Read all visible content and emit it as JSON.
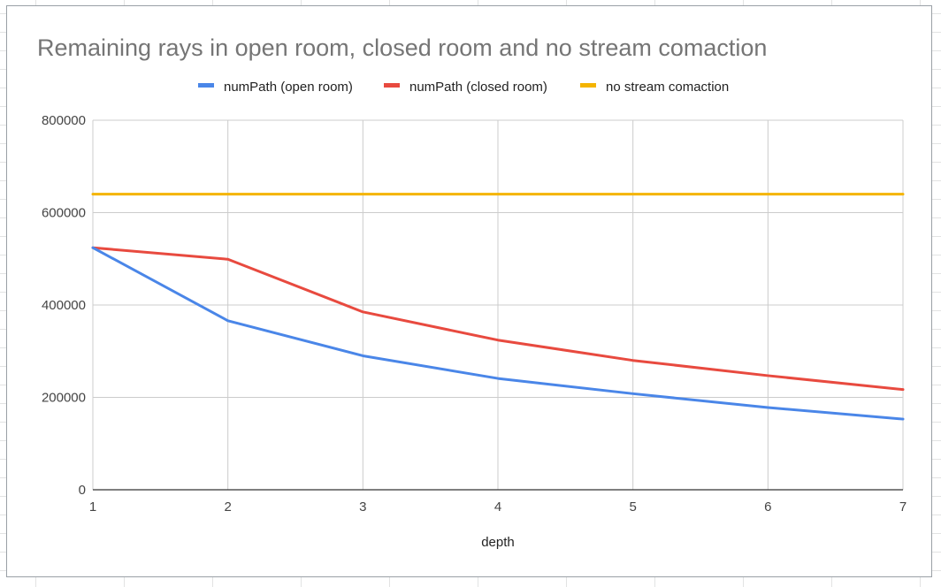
{
  "chart_data": {
    "type": "line",
    "title": "Remaining rays in open room, closed room and no stream comaction",
    "xlabel": "depth",
    "ylabel": "",
    "x": [
      1,
      2,
      3,
      4,
      5,
      6,
      7
    ],
    "x_ticks": [
      "1",
      "2",
      "3",
      "4",
      "5",
      "6",
      "7"
    ],
    "xlim": [
      1,
      7
    ],
    "ylim": [
      0,
      800000
    ],
    "y_ticks": [
      "0",
      "200000",
      "400000",
      "600000",
      "800000"
    ],
    "grid": true,
    "legend_position": "top",
    "series": [
      {
        "name": "numPath (open room)",
        "color": "#4a86e8",
        "values": [
          524000,
          366000,
          290000,
          241000,
          208000,
          178000,
          153000
        ]
      },
      {
        "name": "numPath (closed room)",
        "color": "#e84a3f",
        "values": [
          524000,
          499000,
          385000,
          324000,
          280000,
          247000,
          217000
        ]
      },
      {
        "name": "no stream comaction",
        "color": "#f4b400",
        "values": [
          640000,
          640000,
          640000,
          640000,
          640000,
          640000,
          640000
        ]
      }
    ]
  }
}
